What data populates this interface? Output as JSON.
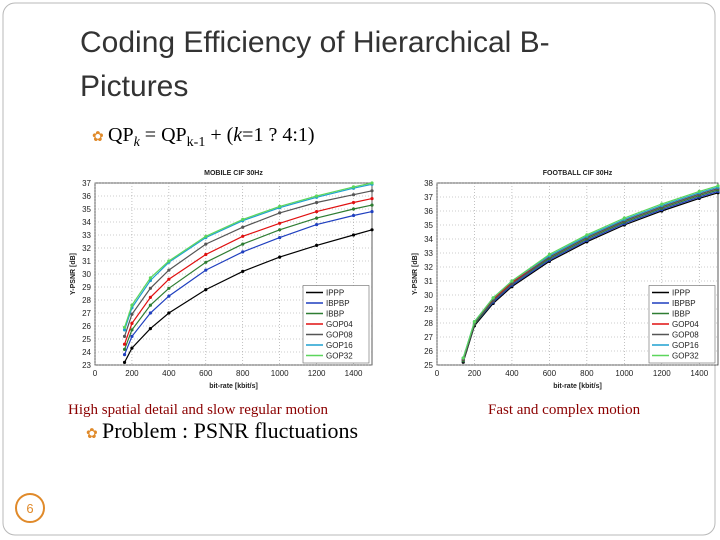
{
  "slide": {
    "title_lines": [
      "Coding Efficiency of Hierarchical B-",
      "Pictures"
    ],
    "bullet1": [
      "QP",
      "k",
      " = QP",
      "k-1",
      " + (",
      "k",
      "=1 ? 4:1)"
    ],
    "captions": [
      "High spatial detail and slow regular motion",
      "Fast and complex motion"
    ],
    "bullet2": "Problem : PSNR fluctuations",
    "page_number": "6"
  },
  "chart_data": [
    {
      "type": "line",
      "title": "MOBILE CIF 30Hz",
      "x_label": "bit-rate [kbit/s]",
      "y_label": "Y-PSNR [dB]",
      "xlim": [
        0,
        1500
      ],
      "xticks": [
        0,
        200,
        400,
        600,
        800,
        1000,
        1200,
        1400
      ],
      "ylim": [
        23,
        37
      ],
      "yticks": [
        23,
        24,
        25,
        26,
        27,
        28,
        29,
        30,
        31,
        32,
        33,
        34,
        35,
        36,
        37
      ],
      "grid": true,
      "legend": "lower right",
      "series": [
        {
          "name": "IPPP",
          "color": "#000000",
          "x": [
            160,
            200,
            300,
            400,
            600,
            800,
            1000,
            1200,
            1400,
            1500
          ],
          "values": [
            23.2,
            24.3,
            25.8,
            27.0,
            28.8,
            30.2,
            31.3,
            32.2,
            33.0,
            33.4
          ]
        },
        {
          "name": "IBPBP",
          "color": "#1f3fbf",
          "x": [
            160,
            200,
            300,
            400,
            600,
            800,
            1000,
            1200,
            1400,
            1500
          ],
          "values": [
            23.8,
            25.2,
            27.0,
            28.3,
            30.3,
            31.7,
            32.8,
            33.8,
            34.5,
            34.8
          ]
        },
        {
          "name": "IBBP",
          "color": "#2e7d32",
          "x": [
            160,
            200,
            300,
            400,
            600,
            800,
            1000,
            1200,
            1400,
            1500
          ],
          "values": [
            24.2,
            25.7,
            27.6,
            28.9,
            30.9,
            32.3,
            33.4,
            34.3,
            35.0,
            35.3
          ]
        },
        {
          "name": "GOP04",
          "color": "#e01010",
          "x": [
            160,
            200,
            300,
            400,
            600,
            800,
            1000,
            1200,
            1400,
            1500
          ],
          "values": [
            24.6,
            26.2,
            28.2,
            29.6,
            31.5,
            32.9,
            33.9,
            34.8,
            35.5,
            35.8
          ]
        },
        {
          "name": "GOP08",
          "color": "#555555",
          "x": [
            160,
            200,
            300,
            400,
            600,
            800,
            1000,
            1200,
            1400,
            1500
          ],
          "values": [
            25.2,
            26.9,
            28.9,
            30.3,
            32.3,
            33.6,
            34.7,
            35.5,
            36.1,
            36.4
          ]
        },
        {
          "name": "GOP16",
          "color": "#1fa0d0",
          "x": [
            160,
            200,
            300,
            400,
            600,
            800,
            1000,
            1200,
            1400,
            1500
          ],
          "values": [
            25.7,
            27.4,
            29.5,
            30.9,
            32.8,
            34.1,
            35.1,
            35.9,
            36.6,
            36.9
          ]
        },
        {
          "name": "GOP32",
          "color": "#5cd65c",
          "x": [
            160,
            200,
            300,
            400,
            600,
            800,
            1000,
            1200,
            1400,
            1500
          ],
          "values": [
            25.9,
            27.6,
            29.7,
            31.0,
            32.9,
            34.2,
            35.2,
            36.0,
            36.7,
            37.0
          ]
        }
      ]
    },
    {
      "type": "line",
      "title": "FOOTBALL CIF 30Hz",
      "x_label": "bit-rate [kbit/s]",
      "y_label": "Y-PSNR [dB]",
      "xlim": [
        0,
        1500
      ],
      "xticks": [
        0,
        200,
        400,
        600,
        800,
        1000,
        1200,
        1400
      ],
      "ylim": [
        25,
        38
      ],
      "yticks": [
        25,
        26,
        27,
        28,
        29,
        30,
        31,
        32,
        33,
        34,
        35,
        36,
        37,
        38
      ],
      "grid": true,
      "legend": "lower right",
      "series": [
        {
          "name": "IPPP",
          "color": "#000000",
          "x": [
            140,
            200,
            300,
            400,
            600,
            800,
            1000,
            1200,
            1400,
            1500
          ],
          "values": [
            25.2,
            27.8,
            29.4,
            30.6,
            32.4,
            33.8,
            35.0,
            36.0,
            36.9,
            37.3
          ]
        },
        {
          "name": "IBPBP",
          "color": "#1f3fbf",
          "x": [
            140,
            200,
            300,
            400,
            600,
            800,
            1000,
            1200,
            1400,
            1500
          ],
          "values": [
            25.3,
            27.9,
            29.5,
            30.7,
            32.5,
            33.9,
            35.1,
            36.1,
            37.0,
            37.4
          ]
        },
        {
          "name": "IBBP",
          "color": "#2e7d32",
          "x": [
            140,
            200,
            300,
            400,
            600,
            800,
            1000,
            1200,
            1400,
            1500
          ],
          "values": [
            25.3,
            27.9,
            29.6,
            30.8,
            32.6,
            34.0,
            35.2,
            36.2,
            37.1,
            37.5
          ]
        },
        {
          "name": "GOP04",
          "color": "#e01010",
          "x": [
            140,
            200,
            300,
            400,
            600,
            800,
            1000,
            1200,
            1400,
            1500
          ],
          "values": [
            25.4,
            28.0,
            29.7,
            30.9,
            32.7,
            34.1,
            35.3,
            36.3,
            37.2,
            37.6
          ]
        },
        {
          "name": "GOP08",
          "color": "#555555",
          "x": [
            140,
            200,
            300,
            400,
            600,
            800,
            1000,
            1200,
            1400,
            1500
          ],
          "values": [
            25.4,
            28.0,
            29.6,
            30.8,
            32.7,
            34.1,
            35.3,
            36.3,
            37.2,
            37.6
          ]
        },
        {
          "name": "GOP16",
          "color": "#1fa0d0",
          "x": [
            140,
            200,
            300,
            400,
            600,
            800,
            1000,
            1200,
            1400,
            1500
          ],
          "values": [
            25.5,
            28.1,
            29.8,
            31.0,
            32.8,
            34.2,
            35.4,
            36.4,
            37.3,
            37.7
          ]
        },
        {
          "name": "GOP32",
          "color": "#5cd65c",
          "x": [
            140,
            200,
            300,
            400,
            600,
            800,
            1000,
            1200,
            1400,
            1500
          ],
          "values": [
            25.5,
            28.1,
            29.8,
            31.0,
            32.9,
            34.3,
            35.5,
            36.5,
            37.4,
            37.8
          ]
        }
      ]
    }
  ]
}
